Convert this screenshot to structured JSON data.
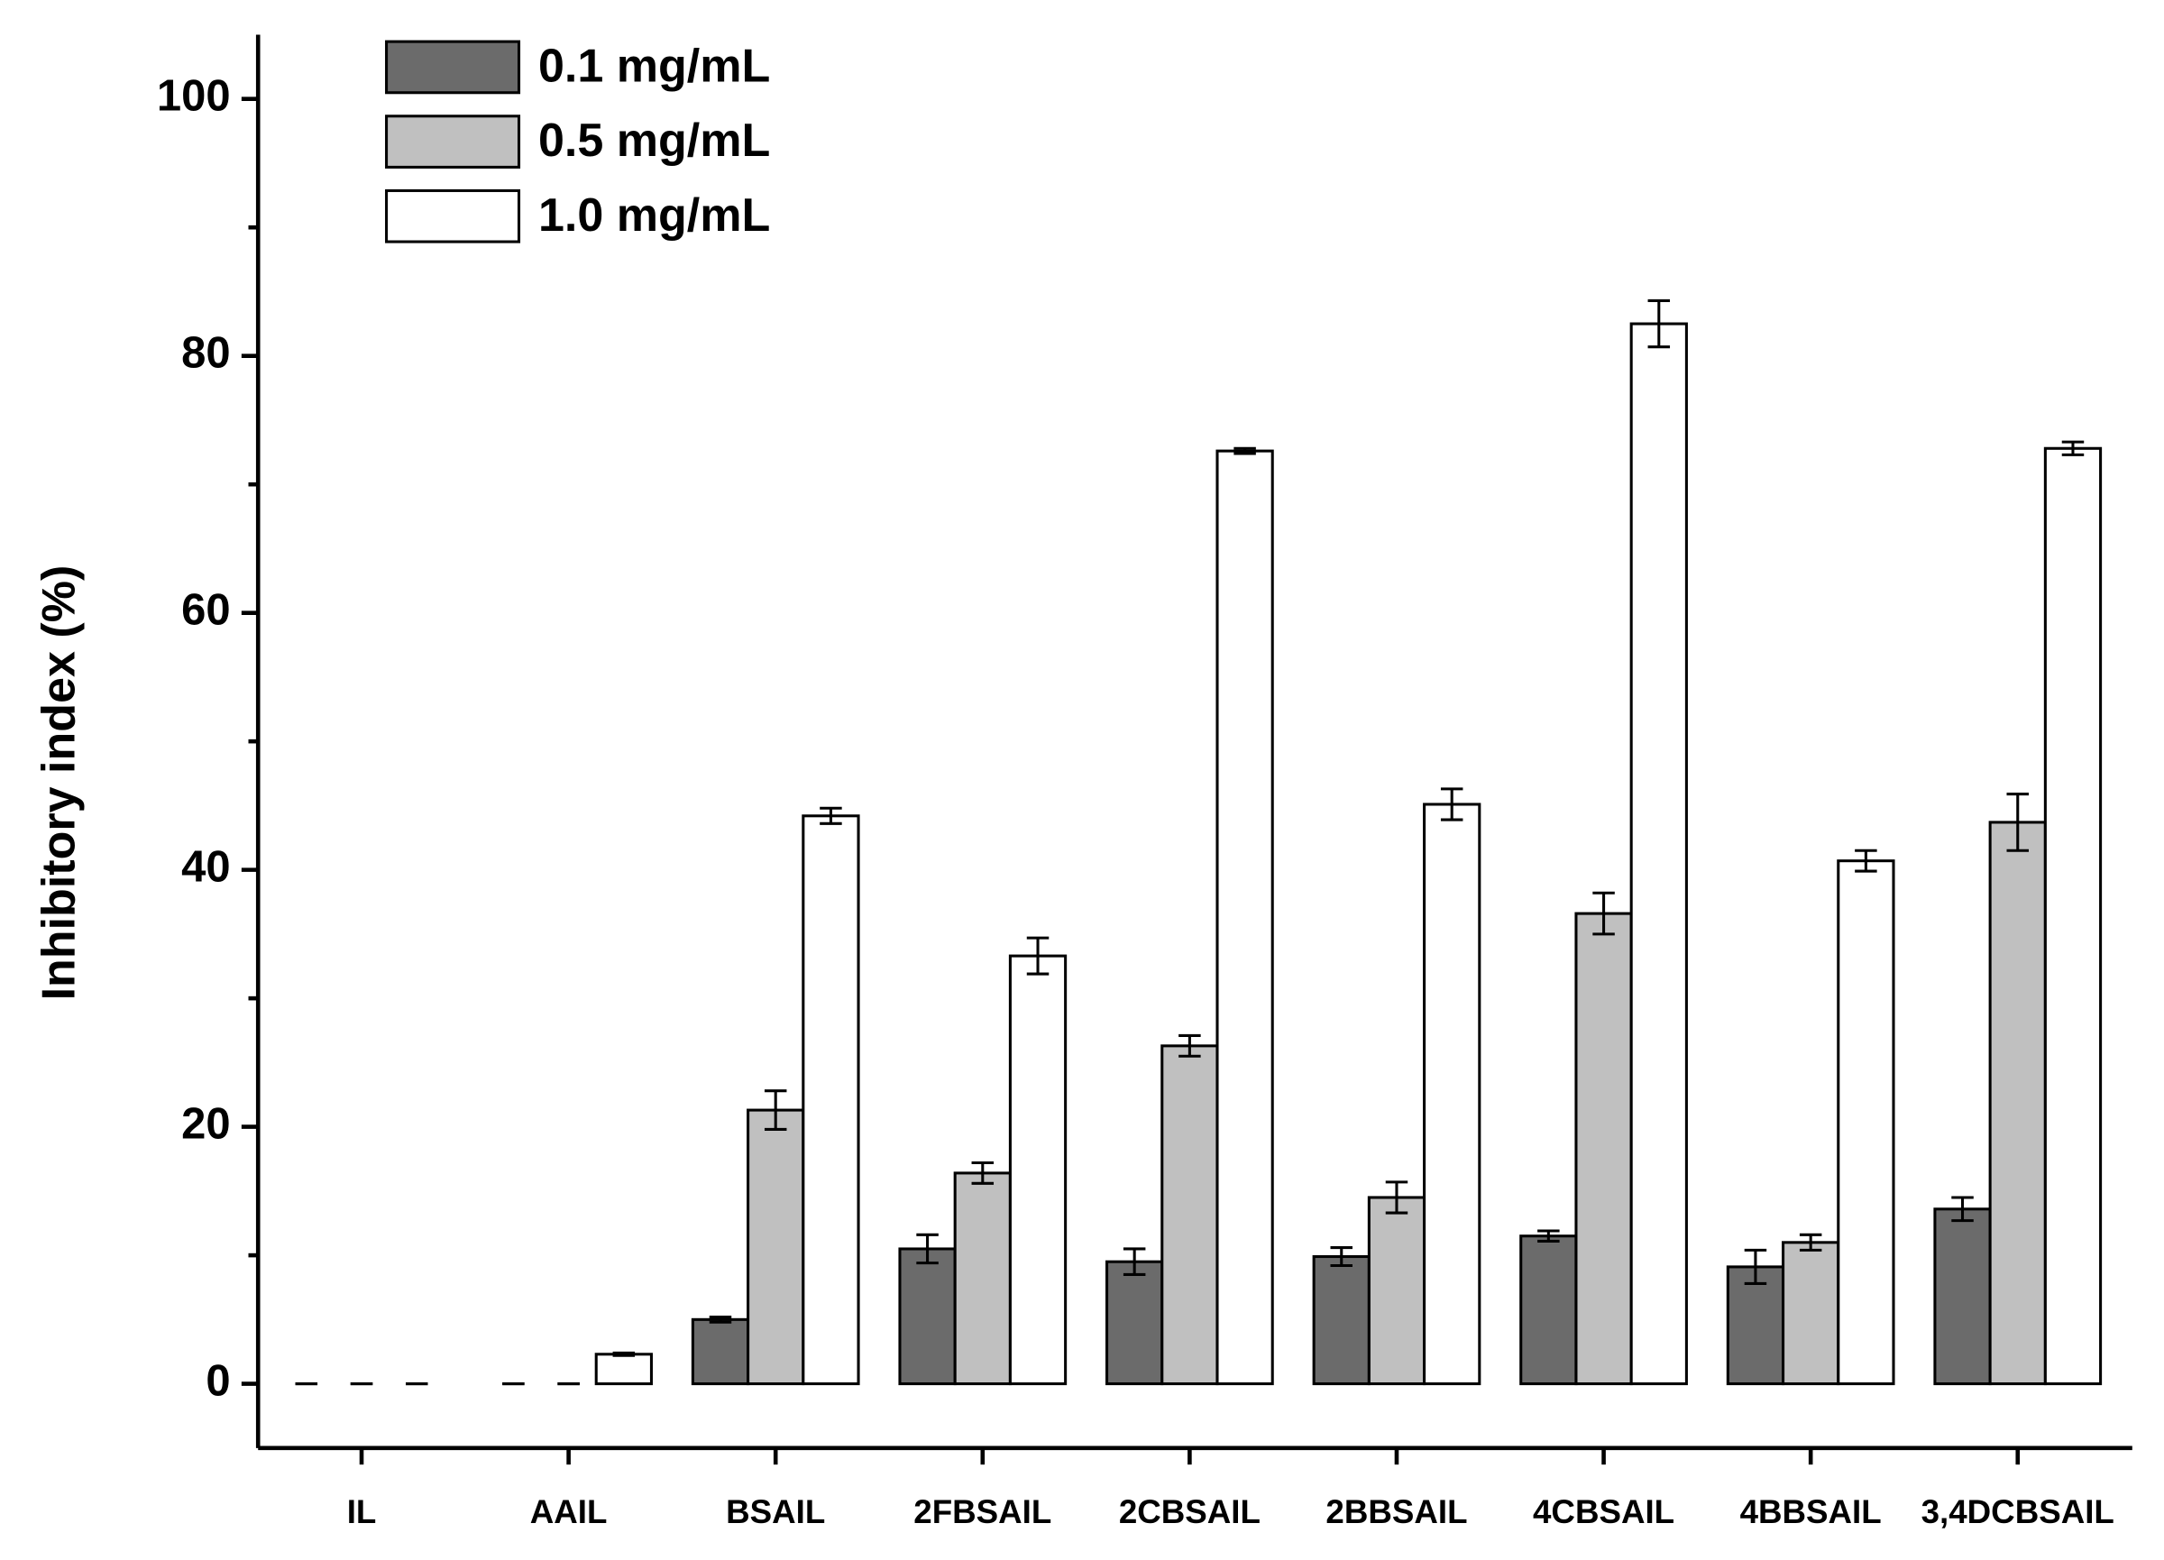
{
  "chart_data": {
    "type": "bar",
    "y_label": "Inhibitory index (%)",
    "categories": [
      "IL",
      "AAIL",
      "BSAIL",
      "2FBSAIL",
      "2CBSAIL",
      "2BBSAIL",
      "4CBSAIL",
      "4BBSAIL",
      "3,4DCBSAIL"
    ],
    "series": [
      {
        "name": "0.1 mg/mL",
        "color": "#6b6b6b",
        "values": [
          0,
          0,
          5.0,
          10.5,
          9.5,
          9.9,
          11.5,
          9.1,
          13.6
        ],
        "errors": [
          0,
          0,
          0.2,
          1.1,
          1.0,
          0.7,
          0.4,
          1.3,
          0.9
        ]
      },
      {
        "name": "0.5 mg/mL",
        "color": "#c0c0c0",
        "values": [
          0,
          0,
          21.3,
          16.4,
          26.3,
          14.5,
          36.6,
          11.0,
          43.7
        ],
        "errors": [
          0,
          0,
          1.5,
          0.8,
          0.8,
          1.2,
          1.6,
          0.6,
          2.2
        ]
      },
      {
        "name": "1.0 mg/mL",
        "color": "#ffffff",
        "values": [
          0,
          2.3,
          44.2,
          33.3,
          72.6,
          45.1,
          82.5,
          40.7,
          72.8
        ],
        "errors": [
          0,
          0.1,
          0.6,
          1.4,
          0.2,
          1.2,
          1.8,
          0.8,
          0.5
        ]
      }
    ],
    "ylim": [
      -5,
      105
    ],
    "yticks": [
      0,
      20,
      40,
      60,
      80,
      100
    ],
    "yminorticks": [
      10,
      30,
      50,
      70,
      90
    ],
    "legend": "top-left"
  }
}
